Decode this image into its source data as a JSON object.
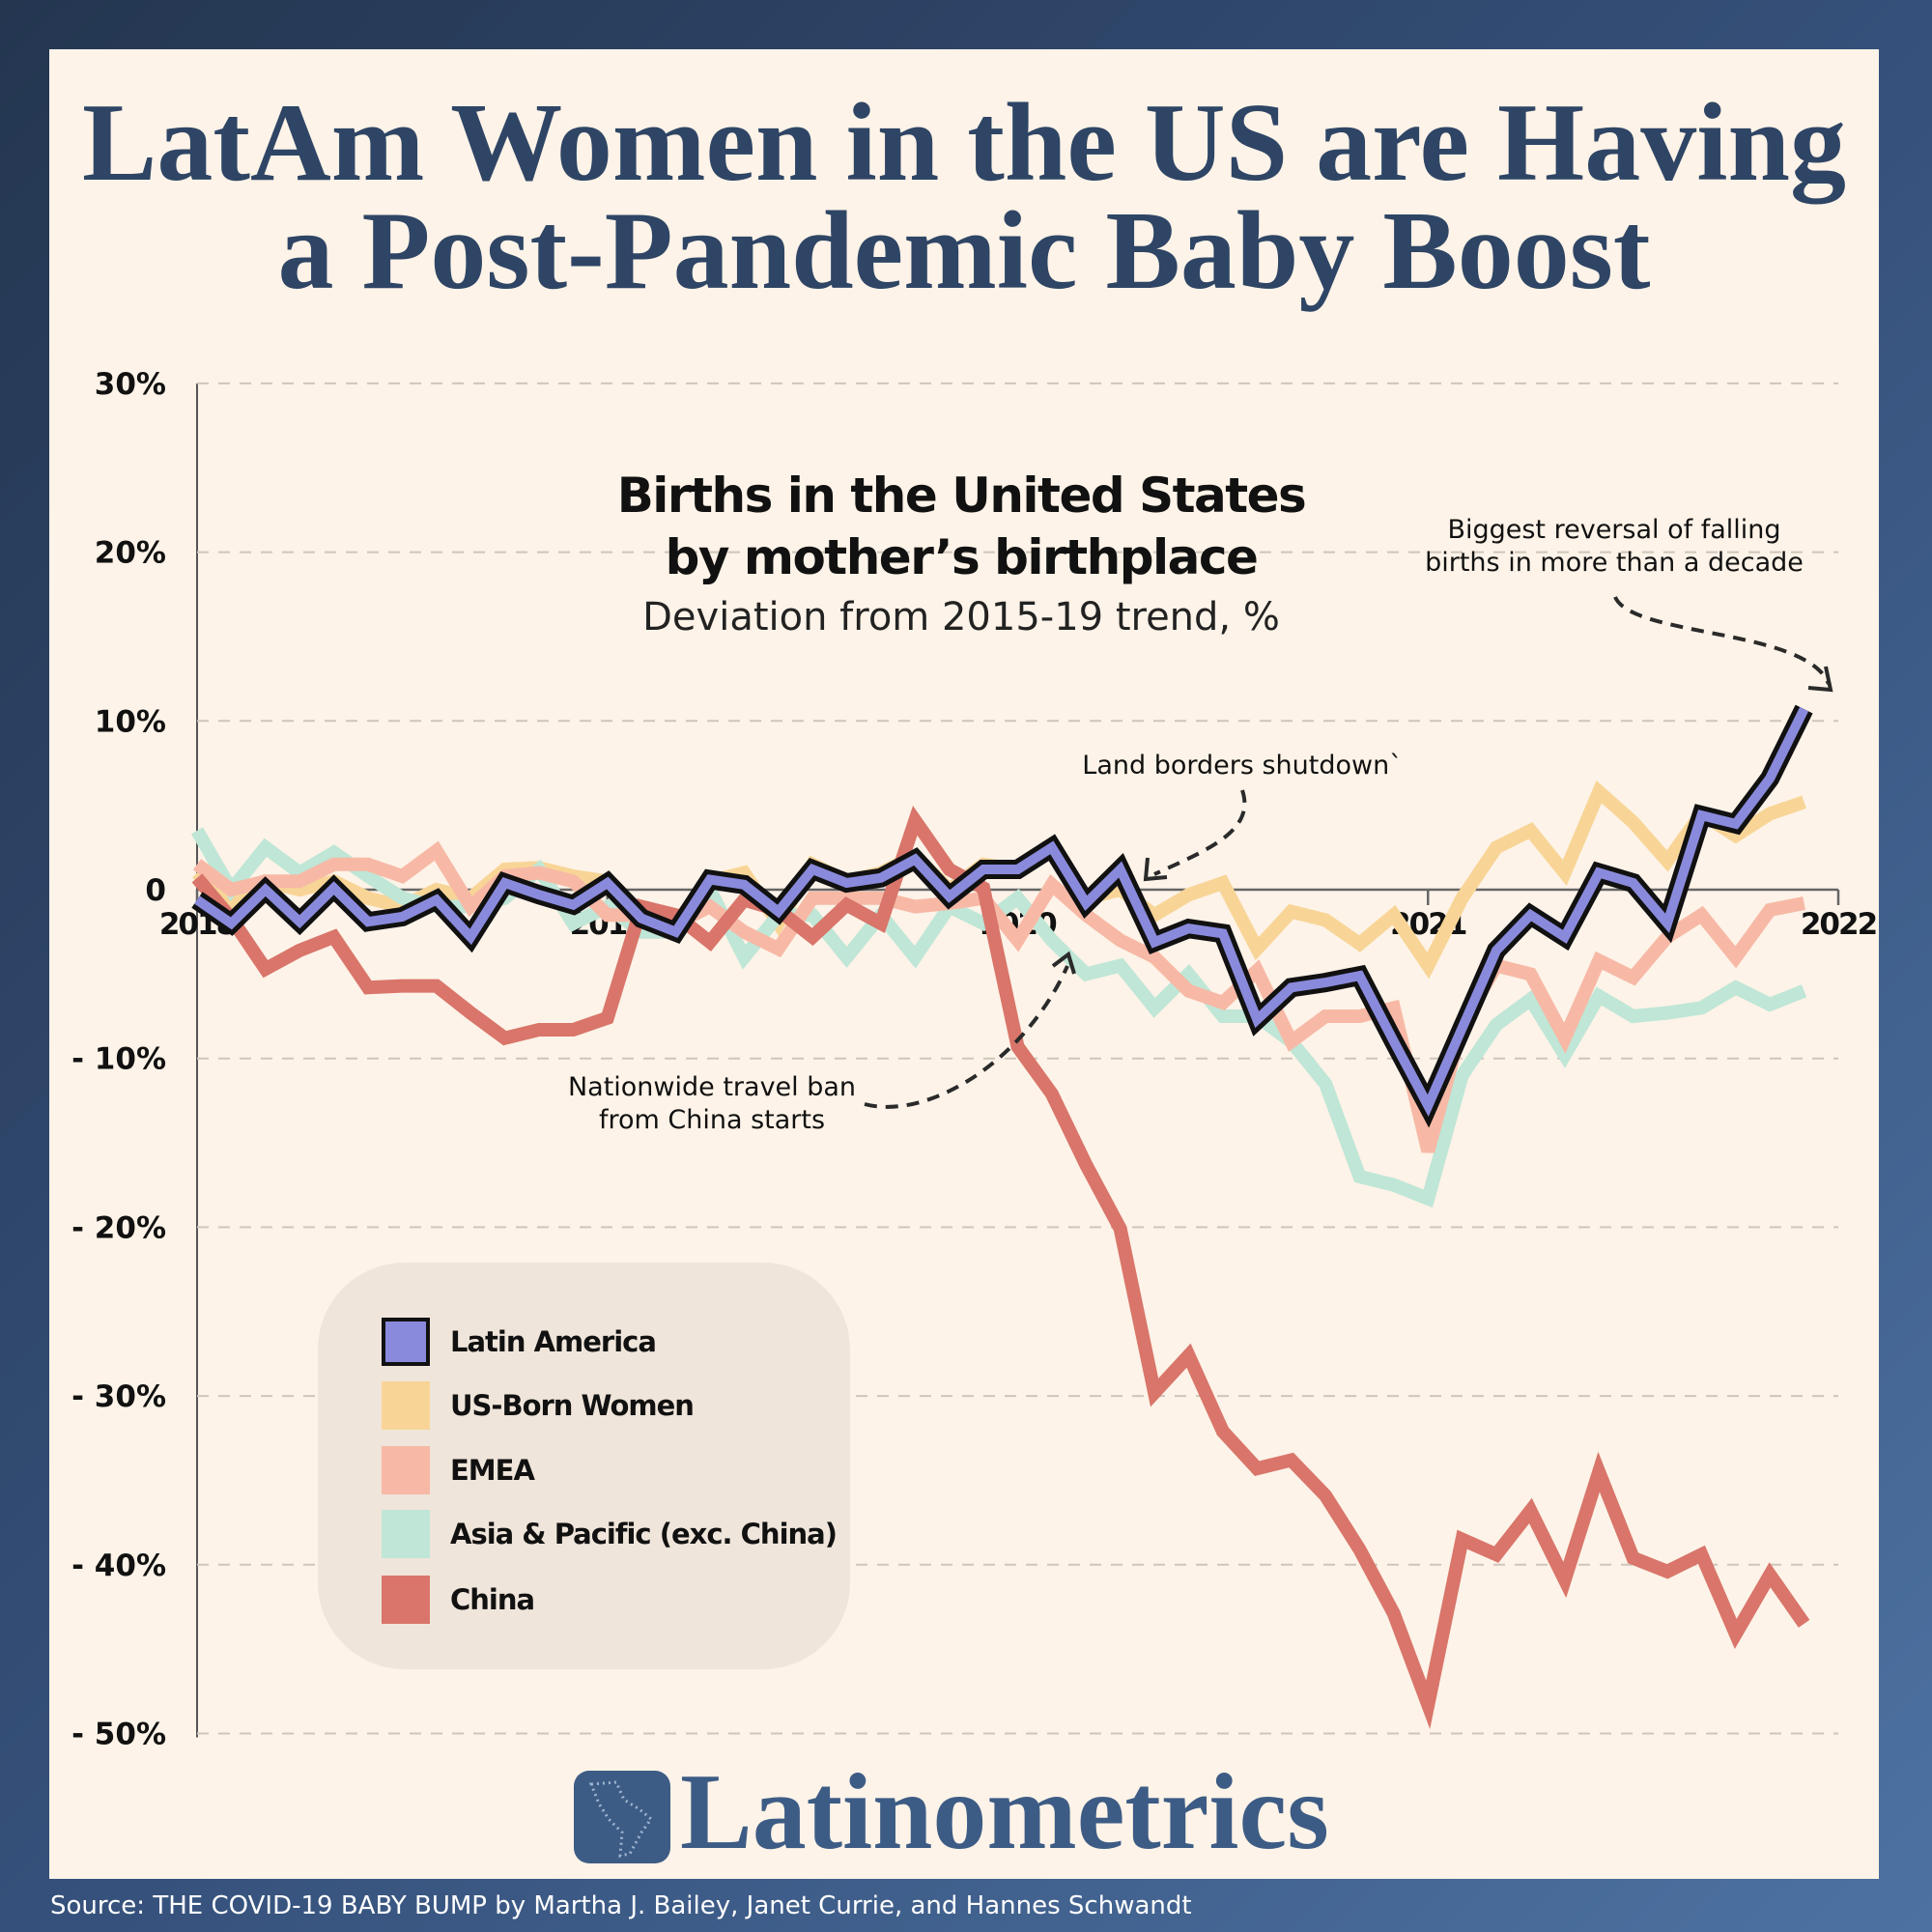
{
  "title": {
    "line1": "LatAm Women in the US are Having",
    "line2": "a Post-Pandemic Baby Boost"
  },
  "chart_data": {
    "type": "line",
    "title": "Births in the United States",
    "title_line2": "by mother’s birthplace",
    "subtitle": "Deviation from 2015-19 trend, %",
    "xlim": [
      "2018-01",
      "2022-01"
    ],
    "ylim": [
      -50,
      30
    ],
    "x_ticks": [
      "2018",
      "2019",
      "2020",
      "2021",
      "2022"
    ],
    "y_ticks": [
      {
        "value": 30,
        "label": "30%"
      },
      {
        "value": 20,
        "label": "20%"
      },
      {
        "value": 10,
        "label": "10%"
      },
      {
        "value": 0,
        "label": "0"
      },
      {
        "value": -10,
        "label": "- 10%"
      },
      {
        "value": -20,
        "label": "- 20%"
      },
      {
        "value": -30,
        "label": "- 30%"
      },
      {
        "value": -40,
        "label": "- 40%"
      },
      {
        "value": -50,
        "label": "- 50%"
      }
    ],
    "grid": "horizontal dashed",
    "legend_position": "bottom-left",
    "months": [
      "2018-01",
      "2018-02",
      "2018-03",
      "2018-04",
      "2018-05",
      "2018-06",
      "2018-07",
      "2018-08",
      "2018-09",
      "2018-10",
      "2018-11",
      "2018-12",
      "2019-01",
      "2019-02",
      "2019-03",
      "2019-04",
      "2019-05",
      "2019-06",
      "2019-07",
      "2019-08",
      "2019-09",
      "2019-10",
      "2019-11",
      "2019-12",
      "2020-01",
      "2020-02",
      "2020-03",
      "2020-04",
      "2020-05",
      "2020-06",
      "2020-07",
      "2020-08",
      "2020-09",
      "2020-10",
      "2020-11",
      "2020-12",
      "2021-01",
      "2021-02",
      "2021-03",
      "2021-04",
      "2021-05",
      "2021-06",
      "2021-07",
      "2021-08",
      "2021-09",
      "2021-10",
      "2021-11",
      "2021-12"
    ],
    "series": [
      {
        "name": "US-Born Women",
        "color": "#f8d597",
        "values": [
          1,
          -1,
          0.5,
          0,
          0.5,
          -0.5,
          -1,
          0,
          -0.5,
          1.2,
          1.3,
          0.8,
          0.5,
          -1.5,
          -2,
          0.5,
          1,
          -2,
          1.5,
          0.5,
          1,
          2,
          0,
          1.5,
          1.2,
          2.3,
          -0.5,
          0,
          -1.5,
          -0.3,
          0.4,
          -3.5,
          -1.3,
          -1.8,
          -3.2,
          -1.5,
          -4.5,
          -0.5,
          2.5,
          3.5,
          1,
          5.8,
          4,
          1.7,
          4.5,
          3.2,
          4.5,
          5.2
        ]
      },
      {
        "name": "Asia & Pacific (exc. China)",
        "color": "#bfe6d6",
        "values": [
          3.5,
          0,
          2.5,
          1,
          2.2,
          0.8,
          -0.5,
          -1,
          -1,
          -0.5,
          1.2,
          -2,
          -1,
          -2.5,
          -2.5,
          0,
          -4,
          -1.5,
          -1.5,
          -4,
          -1.5,
          -4,
          -1,
          -2,
          -0.5,
          -3,
          -5,
          -4.5,
          -7,
          -5,
          -7.5,
          -7.5,
          -9,
          -11.5,
          -17,
          -17.5,
          -18.3,
          -11,
          -8,
          -6.5,
          -9.8,
          -6.3,
          -7.5,
          -7.3,
          -7,
          -5.8,
          -6.8,
          -6
        ]
      },
      {
        "name": "EMEA",
        "color": "#f7b9a6",
        "values": [
          1.5,
          0,
          0.5,
          0.5,
          1.5,
          1.5,
          0.8,
          2.3,
          -1,
          0.8,
          1,
          0.5,
          -1.5,
          -1.5,
          -2,
          -1,
          -2.5,
          -3.5,
          -0.5,
          -0.5,
          -0.5,
          -1,
          -0.8,
          -0.5,
          -3,
          0.3,
          -1.5,
          -3,
          -4,
          -6,
          -6.7,
          -4.8,
          -9,
          -7.5,
          -7.5,
          -7,
          -15.5,
          -8,
          -4.5,
          -5,
          -8.8,
          -4.2,
          -5.2,
          -2.8,
          -1.5,
          -4,
          -1.2,
          -0.8
        ]
      },
      {
        "name": "China",
        "color": "#d9756a",
        "values": [
          0.7,
          -1.7,
          -4.7,
          -3.6,
          -2.8,
          -5.8,
          -5.7,
          -5.7,
          -7.3,
          -8.8,
          -8.3,
          -8.3,
          -7.6,
          -1.0,
          -1.5,
          -3.1,
          -0.6,
          -1.2,
          -2.8,
          -0.9,
          -2.0,
          4.1,
          1.2,
          0.1,
          -9.3,
          -12.1,
          -16.3,
          -20.1,
          -29.8,
          -27.6,
          -32.1,
          -34.3,
          -33.8,
          -35.9,
          -39.1,
          -42.9,
          -48.3,
          -38.5,
          -39.4,
          -36.8,
          -40.9,
          -34.5,
          -39.6,
          -40.4,
          -39.4,
          -44.1,
          -40.6,
          -43.5
        ]
      },
      {
        "name": "Latin America",
        "color": "#8a8adc",
        "outline": "#111111",
        "values": [
          -0.6,
          -2.0,
          0,
          -1.9,
          0.1,
          -1.9,
          -1.6,
          -0.6,
          -2.8,
          0.4,
          -0.3,
          -0.9,
          0.4,
          -1.7,
          -2.5,
          0.6,
          0.3,
          -1.3,
          1.2,
          0.4,
          0.7,
          1.8,
          -0.4,
          1.2,
          1.2,
          2.5,
          -0.8,
          1.2,
          -3.1,
          -2.3,
          -2.6,
          -7.7,
          -5.8,
          -5.5,
          -5.1,
          -9.0,
          -12.8,
          -8.2,
          -3.6,
          -1.5,
          -2.8,
          1.0,
          0.4,
          -2.0,
          4.4,
          3.9,
          6.6,
          10.7
        ]
      }
    ],
    "legend": [
      {
        "label": "Latin America",
        "color": "#8a8adc"
      },
      {
        "label": "US-Born Women",
        "color": "#f8d597"
      },
      {
        "label": "EMEA",
        "color": "#f7b9a6"
      },
      {
        "label": "Asia & Pacific (exc. China)",
        "color": "#bfe6d6"
      },
      {
        "label": "China",
        "color": "#d9756a"
      }
    ],
    "annotations": {
      "land_borders": "Land borders shutdown`",
      "travel_ban_line1": "Nationwide travel ban",
      "travel_ban_line2": "from China starts",
      "reversal_line1": "Biggest reversal of falling",
      "reversal_line2": "births in more than a decade"
    }
  },
  "brand": {
    "name": "Latinometrics",
    "logo_icon": "latin-america-map-icon",
    "color": "#3d5c85"
  },
  "source": "Source: THE COVID-19 BABY BUMP by Martha J. Bailey, Janet Currie, and Hannes Schwandt"
}
